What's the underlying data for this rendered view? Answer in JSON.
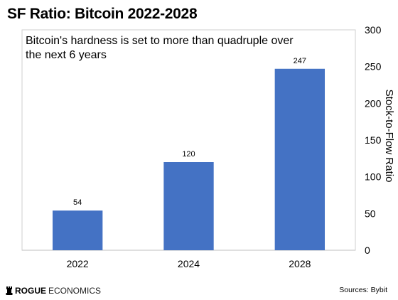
{
  "header": {
    "title": "SF Ratio: Bitcoin 2022-2028"
  },
  "chart_data": {
    "type": "bar",
    "title": "SF Ratio: Bitcoin 2022-2028",
    "subtitle": "Bitcoin's hardness is set to more than quadruple over the next 6 years",
    "categories": [
      "2022",
      "2024",
      "2028"
    ],
    "values": [
      54,
      120,
      247
    ],
    "data_labels": [
      "54",
      "120",
      "247"
    ],
    "ylabel": "Stock-to-Flow Ratio",
    "ylim": [
      0,
      300
    ],
    "yticks": [
      0,
      50,
      100,
      150,
      200,
      250,
      300
    ],
    "y_axis_position": "right",
    "grid": false,
    "bar_color": "#4472C4"
  },
  "footer": {
    "brand_bold": "ROGUE",
    "brand_rest": "ECONOMICS",
    "source": "Sources: Bybit"
  }
}
